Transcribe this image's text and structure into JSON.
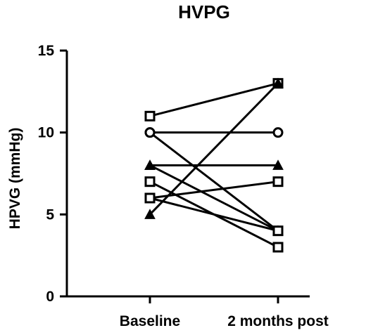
{
  "chart_data": {
    "type": "line",
    "title": "HVPG",
    "ylabel": "HPVG (mmHg)",
    "xlabel": "",
    "categories": [
      "Baseline",
      "2 months post"
    ],
    "ylim": [
      0,
      15
    ],
    "yticks": [
      0,
      5,
      10,
      15
    ],
    "grid": false,
    "legend": "none",
    "series": [
      {
        "marker": "square",
        "values": [
          11,
          13
        ]
      },
      {
        "marker": "circle",
        "values": [
          10,
          10
        ]
      },
      {
        "marker": "circle",
        "values": [
          10,
          4
        ]
      },
      {
        "marker": "triangle",
        "values": [
          8,
          8
        ]
      },
      {
        "marker": "triangle",
        "values": [
          8,
          4
        ]
      },
      {
        "marker": "square",
        "values": [
          7,
          3
        ]
      },
      {
        "marker": "square",
        "values": [
          6,
          7
        ]
      },
      {
        "marker": "square",
        "values": [
          6,
          4
        ]
      },
      {
        "marker": "triangle",
        "values": [
          5,
          13
        ]
      }
    ],
    "colors": {
      "line": "#000000",
      "background": "#ffffff"
    }
  }
}
